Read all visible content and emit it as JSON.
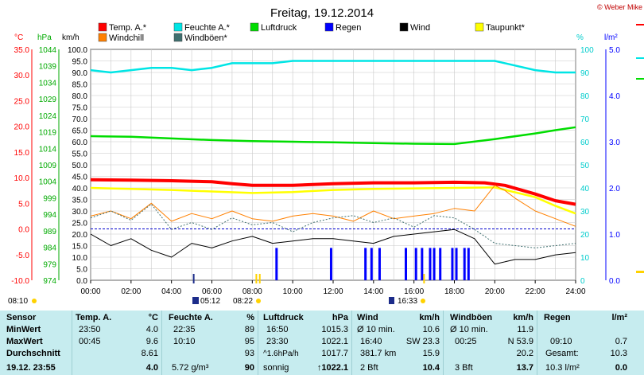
{
  "title": "Freitag, 19.12.2014",
  "credit": "© Weber Mike",
  "axis_units": {
    "temp": "°C",
    "pressure": "hPa",
    "wind": "km/h",
    "humidity": "%",
    "rain": "l/m²"
  },
  "legend": [
    {
      "label": "Temp. A.*",
      "color": "#ff0000"
    },
    {
      "label": "Feuchte A.*",
      "color": "#00e5e5"
    },
    {
      "label": "Luftdruck",
      "color": "#00dd00"
    },
    {
      "label": "Regen",
      "color": "#0000ff"
    },
    {
      "label": "Wind",
      "color": "#000000"
    },
    {
      "label": "Taupunkt*",
      "color": "#ffff00"
    },
    {
      "label": "Windchill",
      "color": "#ff8000"
    },
    {
      "label": "Windböen*",
      "color": "#3f6f6f"
    }
  ],
  "sun_events": {
    "sunrise": "08:10",
    "sunset": "16:33",
    "moon1": "05:12",
    "moon2": "08:22"
  },
  "chart_data": {
    "type": "line",
    "x_unit": "hours",
    "x_ticks": [
      "00:00",
      "02:00",
      "04:00",
      "06:00",
      "08:00",
      "10:00",
      "12:00",
      "14:00",
      "16:00",
      "18:00",
      "20:00",
      "22:00",
      "24:00"
    ],
    "axes": {
      "temp": {
        "ticks": [
          "35.0",
          "30.0",
          "25.0",
          "20.0",
          "15.0",
          "10.0",
          "5.0",
          "0.0",
          "-5.0",
          "-10.0"
        ],
        "range": [
          -10,
          35
        ],
        "color": "#ff0000"
      },
      "pressure": {
        "ticks": [
          "1044",
          "1039",
          "1034",
          "1029",
          "1024",
          "1019",
          "1014",
          "1009",
          "1004",
          "999",
          "994",
          "989",
          "984",
          "979",
          "974"
        ],
        "range": [
          974,
          1044
        ],
        "color": "#00aa00"
      },
      "wind": {
        "ticks": [
          "100.0",
          "95.0",
          "90.0",
          "85.0",
          "80.0",
          "75.0",
          "70.0",
          "65.0",
          "60.0",
          "55.0",
          "50.0",
          "45.0",
          "40.0",
          "35.0",
          "30.0",
          "25.0",
          "20.0",
          "15.0",
          "10.0",
          "5.0",
          "0.0"
        ],
        "range": [
          0,
          100
        ],
        "color": "#000000"
      },
      "humidity": {
        "ticks": [
          "100",
          "90",
          "80",
          "70",
          "60",
          "50",
          "40",
          "30",
          "20",
          "10",
          "0"
        ],
        "range": [
          0,
          100
        ],
        "color": "#00cccc"
      },
      "rain": {
        "ticks": [
          "5.0",
          "4.0",
          "3.0",
          "2.0",
          "1.0",
          "0.0"
        ],
        "range": [
          0,
          5
        ],
        "color": "#0000ff"
      }
    },
    "series": [
      {
        "name": "Feuchte A.*",
        "axis": "humidity",
        "color": "#00e5e5",
        "x": [
          0,
          1,
          2,
          3,
          4,
          5,
          6,
          7,
          8,
          9,
          10,
          11,
          12,
          13,
          14,
          15,
          16,
          17,
          18,
          19,
          20,
          21,
          22,
          23,
          24
        ],
        "values": [
          91,
          90,
          91,
          92,
          92,
          91,
          92,
          94,
          94,
          94,
          95,
          95,
          95,
          95,
          95,
          95,
          95,
          95,
          95,
          95,
          95,
          93,
          91,
          90,
          90
        ]
      },
      {
        "name": "Luftdruck",
        "axis": "pressure",
        "color": "#00dd00",
        "x": [
          0,
          2,
          4,
          6,
          8,
          10,
          12,
          14,
          16,
          18,
          20,
          22,
          23,
          24
        ],
        "values": [
          1017.7,
          1017.5,
          1017.0,
          1016.5,
          1016.2,
          1016.0,
          1015.8,
          1015.6,
          1015.4,
          1015.3,
          1016.8,
          1018.5,
          1019.5,
          1020.4
        ]
      },
      {
        "name": "Temp. A.*",
        "axis": "temp",
        "color": "#ff0000",
        "x": [
          0,
          2,
          4,
          6,
          7,
          8,
          10,
          12,
          14,
          16,
          18,
          19.5,
          20.5,
          22,
          23,
          24
        ],
        "values": [
          9.6,
          9.5,
          9.4,
          9.2,
          8.8,
          8.5,
          8.5,
          8.8,
          9.0,
          9.0,
          9.1,
          9.0,
          8.5,
          6.8,
          5.5,
          4.8
        ]
      },
      {
        "name": "Taupunkt*",
        "axis": "temp",
        "color": "#ffff00",
        "x": [
          0,
          2,
          4,
          6,
          8,
          10,
          12,
          14,
          16,
          18,
          20,
          22,
          23,
          24
        ],
        "values": [
          8.0,
          7.8,
          7.6,
          7.3,
          7.0,
          7.2,
          7.6,
          7.8,
          7.9,
          8.0,
          8.1,
          6.2,
          4.5,
          3.0
        ]
      },
      {
        "name": "Windchill",
        "axis": "temp",
        "color": "#ff8000",
        "x": [
          0,
          1,
          2,
          3,
          4,
          5,
          6,
          7,
          8,
          9,
          10,
          11,
          12,
          13,
          14,
          15,
          16,
          17,
          18,
          19,
          20,
          20.5,
          21,
          22,
          23,
          24
        ],
        "values": [
          2.5,
          3.5,
          2.0,
          5.0,
          1.5,
          3.0,
          2.0,
          3.5,
          2.0,
          1.5,
          2.5,
          3.0,
          2.5,
          1.5,
          3.5,
          2.0,
          2.5,
          3.0,
          4.0,
          3.5,
          8.5,
          7.5,
          6.0,
          3.5,
          2.0,
          0.5
        ]
      },
      {
        "name": "Windböen*",
        "axis": "wind",
        "color": "#3f6f6f",
        "x": [
          0,
          1,
          2,
          3,
          4,
          5,
          6,
          7,
          8,
          9,
          10,
          11,
          12,
          13,
          14,
          15,
          16,
          17,
          18,
          19,
          20,
          21,
          22,
          23,
          24
        ],
        "values": [
          27,
          30,
          26,
          33,
          22,
          25,
          22,
          27,
          24,
          25,
          21,
          25,
          27,
          28,
          25,
          27,
          23,
          28,
          27,
          22,
          16,
          15,
          14,
          15,
          16
        ]
      },
      {
        "name": "Wind",
        "axis": "wind",
        "color": "#000000",
        "x": [
          0,
          1,
          2,
          3,
          4,
          5,
          6,
          7,
          8,
          9,
          10,
          11,
          12,
          13,
          14,
          15,
          16,
          17,
          18,
          19,
          20,
          21,
          22,
          23,
          24
        ],
        "values": [
          20,
          15,
          18,
          13,
          10,
          16,
          14,
          17,
          19,
          16,
          17,
          18,
          18,
          17,
          16,
          19,
          20,
          21,
          22,
          18,
          7,
          9,
          9,
          11,
          12
        ]
      },
      {
        "name": "Regen",
        "axis": "rain",
        "color": "#0000ff",
        "type": "bar",
        "x": [
          9.2,
          11.9,
          13.6,
          13.9,
          14.3,
          15.6,
          16.1,
          16.4,
          16.8,
          17.0,
          17.3,
          17.9,
          18.1,
          18.5,
          18.7
        ],
        "values": [
          0.7,
          0.7,
          0.7,
          0.7,
          0.7,
          0.7,
          0.7,
          0.7,
          0.7,
          0.7,
          0.7,
          0.7,
          0.7,
          0.7,
          0.7
        ]
      }
    ]
  },
  "table": {
    "labels": {
      "sensor": "Sensor",
      "min": "MinWert",
      "max": "MaxWert",
      "avg": "Durchschnitt",
      "current": "19.12. 23:55"
    },
    "temp": {
      "title": "Temp. A.",
      "unit": "°C",
      "min_time": "23:50",
      "min": "4.0",
      "max_time": "00:45",
      "max": "9.6",
      "avg": "8.61",
      "current": "4.0"
    },
    "humidity": {
      "title": "Feuchte A.",
      "unit": "%",
      "min_time": "22:35",
      "min": "89",
      "max_time": "10:10",
      "max": "95",
      "avg": "93",
      "abs": "5.72 g/m³",
      "current": "90"
    },
    "pressure": {
      "title": "Luftdruck",
      "unit": "hPa",
      "min_time": "16:50",
      "min": "1015.3",
      "max_time": "23:30",
      "max": "1022.1",
      "trend": "^1.6hPa/h",
      "avg": "1017.7",
      "forecast": "sonnig",
      "current": "↑1022.1"
    },
    "wind": {
      "title": "Wind",
      "unit": "km/h",
      "r1_label": "Ø 10 min.",
      "r1_val": "10.6",
      "r2_time": "16:40",
      "r2_dir": "SW 23.3",
      "r3_label": "381.7 km",
      "r3_val": "15.9",
      "bft": "2 Bft",
      "current": "10.4"
    },
    "gusts": {
      "title": "Windböen",
      "unit": "km/h",
      "r1_label": "Ø 10 min.",
      "r1_val": "11.9",
      "r2_time": "00:25",
      "r2_dir": "N 53.9",
      "r3_val": "20.2",
      "bft": "3 Bft",
      "current": "13.7"
    },
    "rain": {
      "title": "Regen",
      "unit": "l/m²",
      "r2_time": "09:10",
      "r2_val": "0.7",
      "total_label": "Gesamt:",
      "total": "10.3",
      "rate": "10.3 l/m²",
      "current": "0.0"
    }
  }
}
